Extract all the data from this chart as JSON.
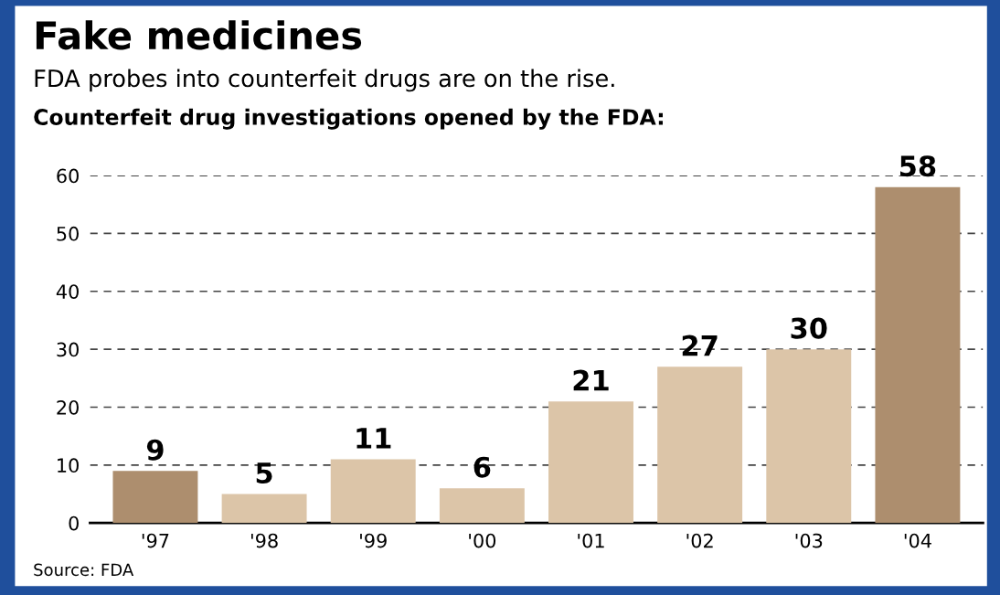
{
  "chart_data": {
    "type": "bar",
    "title": "Fake medicines",
    "subtitle": "FDA probes into counterfeit drugs are on the rise.",
    "ylabel": "Counterfeit drug investigations opened by the FDA:",
    "categories": [
      "'97",
      "'98",
      "'99",
      "'00",
      "'01",
      "'02",
      "'03",
      "'04"
    ],
    "values": [
      9,
      5,
      11,
      6,
      21,
      27,
      30,
      58
    ],
    "colors": [
      "#ad8e6e",
      "#dcc5a8",
      "#dcc5a8",
      "#dcc5a8",
      "#dcc5a8",
      "#dcc5a8",
      "#dcc5a8",
      "#ad8e6e"
    ],
    "ylim": [
      0,
      60
    ],
    "yticks": [
      0,
      10,
      20,
      30,
      40,
      50,
      60
    ],
    "grid": "y",
    "data_labels": true,
    "annotations": [
      "Source: FDA"
    ]
  }
}
